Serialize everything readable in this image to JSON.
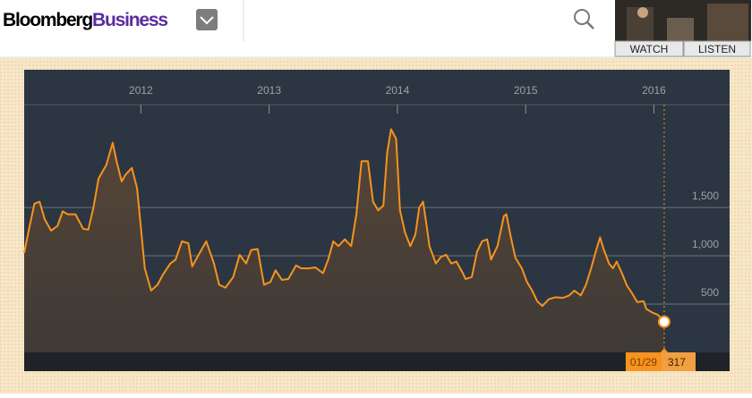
{
  "header": {
    "brand": "Bloomberg",
    "brand_accent": "Business",
    "watch": "WATCH",
    "listen": "LISTEN"
  },
  "chart_data": {
    "type": "line",
    "xlim": [
      2011.09,
      2016.59
    ],
    "xticks": [
      2012,
      2013,
      2014,
      2015,
      2016
    ],
    "ylim": [
      0,
      2565
    ],
    "yticks": [
      {
        "value": 500,
        "label": "500"
      },
      {
        "value": 1000,
        "label": "1,000"
      },
      {
        "value": 1500,
        "label": "1,500"
      }
    ],
    "grid": true,
    "series": [
      {
        "color": "#f7931e",
        "x": [
          2011.09,
          2011.13,
          2011.17,
          2011.21,
          2011.25,
          2011.3,
          2011.35,
          2011.39,
          2011.43,
          2011.49,
          2011.55,
          2011.59,
          2011.63,
          2011.67,
          2011.73,
          2011.78,
          2011.81,
          2011.85,
          2011.88,
          2011.93,
          2011.97,
          2012.0,
          2012.03,
          2012.08,
          2012.13,
          2012.17,
          2012.23,
          2012.27,
          2012.32,
          2012.37,
          2012.4,
          2012.45,
          2012.51,
          2012.57,
          2012.61,
          2012.66,
          2012.72,
          2012.77,
          2012.82,
          2012.86,
          2012.91,
          2012.96,
          2013.01,
          2013.05,
          2013.1,
          2013.15,
          2013.21,
          2013.25,
          2013.31,
          2013.36,
          2013.42,
          2013.46,
          2013.5,
          2013.54,
          2013.59,
          2013.64,
          2013.68,
          2013.72,
          2013.77,
          2013.81,
          2013.85,
          2013.89,
          2013.92,
          2013.95,
          2013.99,
          2014.02,
          2014.06,
          2014.1,
          2014.14,
          2014.17,
          2014.2,
          2014.23,
          2014.25,
          2014.3,
          2014.34,
          2014.38,
          2014.42,
          2014.46,
          2014.51,
          2014.53,
          2014.58,
          2014.62,
          2014.66,
          2014.7,
          2014.73,
          2014.78,
          2014.83,
          2014.85,
          2014.88,
          2014.92,
          2014.97,
          2015.01,
          2015.05,
          2015.09,
          2015.13,
          2015.18,
          2015.23,
          2015.29,
          2015.34,
          2015.38,
          2015.43,
          2015.47,
          2015.51,
          2015.55,
          2015.58,
          2015.61,
          2015.65,
          2015.68,
          2015.71,
          2015.75,
          2015.79,
          2015.83,
          2015.87,
          2015.92,
          2015.94,
          2015.99,
          2016.03,
          2016.08
        ],
        "values": [
          1030,
          1290,
          1540,
          1560,
          1380,
          1260,
          1310,
          1460,
          1430,
          1430,
          1280,
          1270,
          1500,
          1800,
          1940,
          2170,
          1980,
          1770,
          1840,
          1910,
          1700,
          1290,
          870,
          640,
          700,
          800,
          920,
          960,
          1150,
          1130,
          890,
          1010,
          1150,
          920,
          700,
          670,
          780,
          1010,
          920,
          1060,
          1070,
          700,
          730,
          850,
          750,
          760,
          900,
          870,
          870,
          880,
          820,
          960,
          1150,
          1100,
          1170,
          1100,
          1430,
          1980,
          1980,
          1560,
          1470,
          1520,
          2070,
          2310,
          2210,
          1470,
          1240,
          1100,
          1220,
          1500,
          1560,
          1290,
          1100,
          920,
          990,
          1010,
          920,
          940,
          820,
          760,
          780,
          1040,
          1150,
          1170,
          960,
          1100,
          1410,
          1430,
          1220,
          980,
          870,
          730,
          640,
          530,
          480,
          550,
          570,
          565,
          590,
          640,
          590,
          700,
          870,
          1060,
          1190,
          1060,
          920,
          870,
          940,
          820,
          690,
          610,
          520,
          530,
          450,
          410,
          390,
          317
        ]
      }
    ],
    "end_label": {
      "date": "01/29",
      "value": 317
    }
  }
}
